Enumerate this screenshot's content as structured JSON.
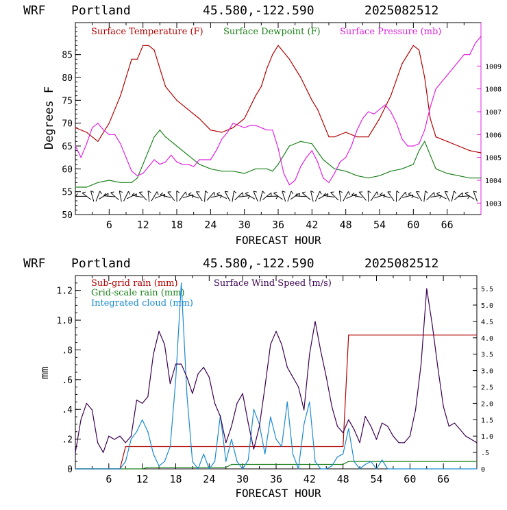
{
  "panels": [
    {
      "header": {
        "model": "WRF",
        "location": "Portland",
        "coords": "45.580,-122.590",
        "init": "2025082512"
      },
      "legend": [
        {
          "label": "Surface Temperature (F)",
          "color": "#b00000"
        },
        {
          "label": "Surface Dewpoint (F)",
          "color": "#1a801a"
        },
        {
          "label": "Surface Pressure (mb)",
          "color": "#e020e0"
        }
      ],
      "ylabel": "Degrees F",
      "xlabel": "FORECAST HOUR",
      "xticks": [
        "6",
        "12",
        "18",
        "24",
        "30",
        "36",
        "42",
        "48",
        "54",
        "60",
        "66"
      ],
      "yticks_left": [
        "50",
        "55",
        "60",
        "65",
        "70",
        "75",
        "80",
        "85"
      ],
      "yticks_right": [
        "1003",
        "1004",
        "1005",
        "1006",
        "1007",
        "1008",
        "1009"
      ]
    },
    {
      "header": {
        "model": "WRF",
        "location": "Portland",
        "coords": "45.580,-122.590",
        "init": "2025082512"
      },
      "legend": [
        {
          "label": "Sub-grid rain (mm)",
          "color": "#b00000"
        },
        {
          "label": "Grid-scale rain (mm)",
          "color": "#1a801a"
        },
        {
          "label": "Integrated cloud (mm)",
          "color": "#1a8ad0"
        },
        {
          "label": "Surface Wind Speed (m/s)",
          "color": "#3a0050"
        }
      ],
      "ylabel": "mm",
      "xlabel": "FORECAST HOUR",
      "xticks": [
        "6",
        "12",
        "18",
        "24",
        "30",
        "36",
        "42",
        "48",
        "54",
        "60",
        "66"
      ],
      "yticks_left": [
        "0",
        ".2",
        ".4",
        ".6",
        ".8",
        "1.0",
        "1.2"
      ],
      "yticks_right": [
        "0",
        ".5",
        "1.0",
        "1.5",
        "2.0",
        "2.5",
        "3.0",
        "3.5",
        "4.0",
        "4.5",
        "5.0",
        "5.5"
      ]
    }
  ],
  "chart_data": [
    {
      "type": "line",
      "title": "WRF Portland 45.580,-122.590 2025082512",
      "xlabel": "FORECAST HOUR",
      "ylabel": "Degrees F",
      "xlim": [
        0,
        72
      ],
      "ylim": [
        50,
        92
      ],
      "y2lim": [
        1002.5,
        1010.9
      ],
      "series": [
        {
          "name": "Surface Temperature (F)",
          "axis": "left",
          "color": "#b00000",
          "x": [
            0,
            2,
            4,
            6,
            8,
            9,
            10,
            11,
            12,
            13,
            14,
            15,
            16,
            18,
            20,
            22,
            24,
            26,
            28,
            30,
            32,
            33,
            34,
            35,
            36,
            38,
            40,
            42,
            43,
            44,
            45,
            46,
            48,
            50,
            52,
            54,
            56,
            58,
            60,
            61,
            62,
            63,
            64,
            66,
            68,
            70,
            72
          ],
          "y": [
            69,
            68,
            66,
            70,
            76,
            80,
            84,
            84,
            87,
            87,
            86,
            82,
            78,
            75,
            73,
            71,
            68.5,
            68,
            69,
            71,
            76,
            78,
            82,
            85,
            87,
            84,
            80,
            75,
            73,
            70,
            67,
            67,
            68,
            67,
            67,
            71,
            76,
            83,
            87,
            86,
            80,
            71,
            67,
            66,
            65,
            64,
            63.5
          ]
        },
        {
          "name": "Surface Dewpoint (F)",
          "axis": "left",
          "color": "#1a801a",
          "x": [
            0,
            2,
            4,
            6,
            8,
            10,
            11,
            12,
            13,
            14,
            15,
            16,
            17,
            18,
            20,
            22,
            24,
            26,
            28,
            30,
            32,
            34,
            35,
            36,
            37,
            38,
            40,
            42,
            44,
            46,
            48,
            50,
            52,
            54,
            56,
            58,
            60,
            61,
            62,
            63,
            64,
            66,
            68,
            70,
            72
          ],
          "y": [
            56,
            56,
            57,
            57.5,
            57,
            57,
            58,
            61,
            64,
            67,
            68.5,
            67,
            66,
            65,
            63,
            61,
            60,
            59.5,
            59.5,
            59,
            60,
            60,
            59.5,
            61,
            63,
            65,
            66,
            65.5,
            62,
            60,
            59.5,
            58.5,
            58,
            58.5,
            59.5,
            60,
            61,
            64,
            66,
            63,
            60,
            59,
            58.5,
            58,
            58
          ]
        },
        {
          "name": "Surface Pressure (mb)",
          "axis": "right",
          "color": "#e020e0",
          "x": [
            0,
            1,
            2,
            3,
            4,
            5,
            6,
            7,
            8,
            9,
            10,
            11,
            12,
            13,
            14,
            15,
            16,
            17,
            18,
            19,
            20,
            21,
            22,
            23,
            24,
            25,
            26,
            27,
            28,
            29,
            30,
            31,
            32,
            33,
            34,
            35,
            36,
            37,
            38,
            39,
            40,
            41,
            42,
            43,
            44,
            45,
            46,
            47,
            48,
            49,
            50,
            51,
            52,
            53,
            54,
            55,
            56,
            57,
            58,
            59,
            60,
            61,
            62,
            63,
            64,
            65,
            66,
            67,
            68,
            69,
            70,
            71,
            72
          ],
          "y": [
            1005.5,
            1005.0,
            1005.6,
            1006.3,
            1006.5,
            1006.2,
            1006.0,
            1006.0,
            1005.6,
            1005.0,
            1004.4,
            1004.2,
            1004.3,
            1004.6,
            1004.9,
            1004.7,
            1004.8,
            1005.1,
            1004.8,
            1004.7,
            1004.7,
            1004.6,
            1004.9,
            1004.9,
            1004.9,
            1005.3,
            1005.8,
            1006.1,
            1006.5,
            1006.4,
            1006.3,
            1006.4,
            1006.4,
            1006.3,
            1006.2,
            1006.2,
            1005.4,
            1004.3,
            1003.8,
            1004.0,
            1004.6,
            1005.0,
            1005.3,
            1004.8,
            1004.1,
            1003.9,
            1004.3,
            1004.8,
            1005.0,
            1005.5,
            1006.2,
            1006.7,
            1007.0,
            1006.9,
            1007.1,
            1007.3,
            1007.0,
            1006.5,
            1005.8,
            1005.5,
            1005.5,
            1005.6,
            1006.2,
            1007.2,
            1008.0,
            1008.3,
            1008.6,
            1008.9,
            1009.2,
            1009.5,
            1009.5,
            1010.0,
            1010.3
          ]
        }
      ],
      "wind_barbs": {
        "row_y_degF": 54,
        "hours": [
          1,
          2,
          3,
          4,
          5,
          6,
          7,
          8,
          9,
          10,
          11,
          12,
          13,
          14,
          15,
          16,
          17,
          18,
          19,
          20,
          21,
          22,
          23,
          24,
          25,
          26,
          27,
          28,
          29,
          30,
          31,
          32,
          33,
          34,
          35,
          36,
          37,
          38,
          39,
          40,
          41,
          42,
          43,
          44,
          45,
          46,
          47,
          48,
          49,
          50,
          51,
          52,
          53,
          54,
          55,
          56,
          57,
          58,
          59,
          60,
          61,
          62,
          63,
          64,
          65,
          66,
          67,
          68,
          69,
          70,
          71
        ]
      }
    },
    {
      "type": "line",
      "title": "WRF Portland 45.580,-122.590 2025082512",
      "xlabel": "FORECAST HOUR",
      "ylabel": "mm",
      "xlim": [
        0,
        72
      ],
      "ylim": [
        0,
        1.3
      ],
      "y2lim": [
        0,
        5.9
      ],
      "series": [
        {
          "name": "Sub-grid rain (mm)",
          "axis": "left",
          "color": "#b00000",
          "x": [
            0,
            8,
            9,
            48,
            49,
            72
          ],
          "y": [
            0,
            0,
            0.15,
            0.15,
            0.9,
            0.9
          ]
        },
        {
          "name": "Grid-scale rain (mm)",
          "axis": "left",
          "color": "#1a801a",
          "x": [
            0,
            12,
            13,
            27,
            28,
            48,
            49,
            72
          ],
          "y": [
            0,
            0,
            0.01,
            0.01,
            0.03,
            0.03,
            0.05,
            0.05
          ]
        },
        {
          "name": "Integrated cloud (mm)",
          "axis": "left",
          "color": "#1a8ad0",
          "x": [
            0,
            8,
            9,
            10,
            11,
            12,
            13,
            14,
            15,
            16,
            17,
            18,
            19,
            20,
            21,
            22,
            23,
            24,
            25,
            26,
            27,
            28,
            29,
            30,
            31,
            32,
            33,
            34,
            35,
            36,
            37,
            38,
            39,
            40,
            41,
            42,
            43,
            44,
            45,
            46,
            47,
            48,
            49,
            50,
            51,
            52,
            53,
            54,
            55,
            56,
            72
          ],
          "y": [
            0,
            0,
            0.05,
            0.2,
            0.25,
            0.33,
            0.25,
            0.1,
            0.02,
            0.05,
            0.15,
            0.6,
            1.25,
            0.5,
            0.05,
            0.0,
            0.1,
            0.0,
            0.05,
            0.36,
            0.05,
            0.2,
            0.05,
            0.0,
            0.06,
            0.4,
            0.3,
            0.1,
            0.35,
            0.2,
            0.15,
            0.45,
            0.1,
            0.0,
            0.3,
            0.45,
            0.05,
            0.0,
            0.0,
            0.02,
            0.08,
            0.1,
            0.27,
            0.05,
            0.0,
            0.03,
            0.05,
            0.0,
            0.06,
            0.0,
            0.0
          ]
        },
        {
          "name": "Surface Wind Speed (m/s)",
          "axis": "right",
          "color": "#3a0050",
          "x": [
            0,
            1,
            2,
            3,
            4,
            5,
            6,
            7,
            8,
            9,
            10,
            11,
            12,
            13,
            14,
            15,
            16,
            17,
            18,
            19,
            20,
            21,
            22,
            23,
            24,
            25,
            26,
            27,
            28,
            29,
            30,
            31,
            32,
            33,
            34,
            35,
            36,
            37,
            38,
            39,
            40,
            41,
            42,
            43,
            44,
            45,
            46,
            47,
            48,
            49,
            50,
            51,
            52,
            53,
            54,
            55,
            56,
            57,
            58,
            59,
            60,
            61,
            62,
            63,
            64,
            65,
            66,
            67,
            68,
            69,
            70,
            71,
            72
          ],
          "y": [
            0.5,
            1.5,
            2.0,
            1.8,
            0.8,
            0.5,
            1.0,
            0.9,
            1.0,
            0.8,
            1.0,
            2.1,
            2.0,
            2.2,
            3.5,
            4.2,
            3.8,
            2.6,
            3.2,
            3.2,
            2.8,
            2.3,
            2.9,
            3.1,
            2.8,
            2.0,
            1.6,
            0.8,
            1.3,
            2.0,
            2.3,
            1.4,
            0.6,
            1.3,
            2.5,
            3.8,
            4.2,
            3.8,
            3.1,
            2.8,
            2.5,
            1.8,
            3.5,
            4.5,
            3.6,
            2.8,
            1.9,
            1.3,
            1.1,
            1.5,
            1.2,
            0.8,
            1.6,
            1.3,
            0.9,
            1.4,
            1.3,
            1.0,
            0.8,
            0.8,
            1.0,
            1.8,
            3.2,
            5.5,
            4.4,
            3.1,
            1.9,
            1.3,
            1.4,
            1.2,
            1.0,
            0.9,
            0.8
          ]
        }
      ]
    }
  ]
}
